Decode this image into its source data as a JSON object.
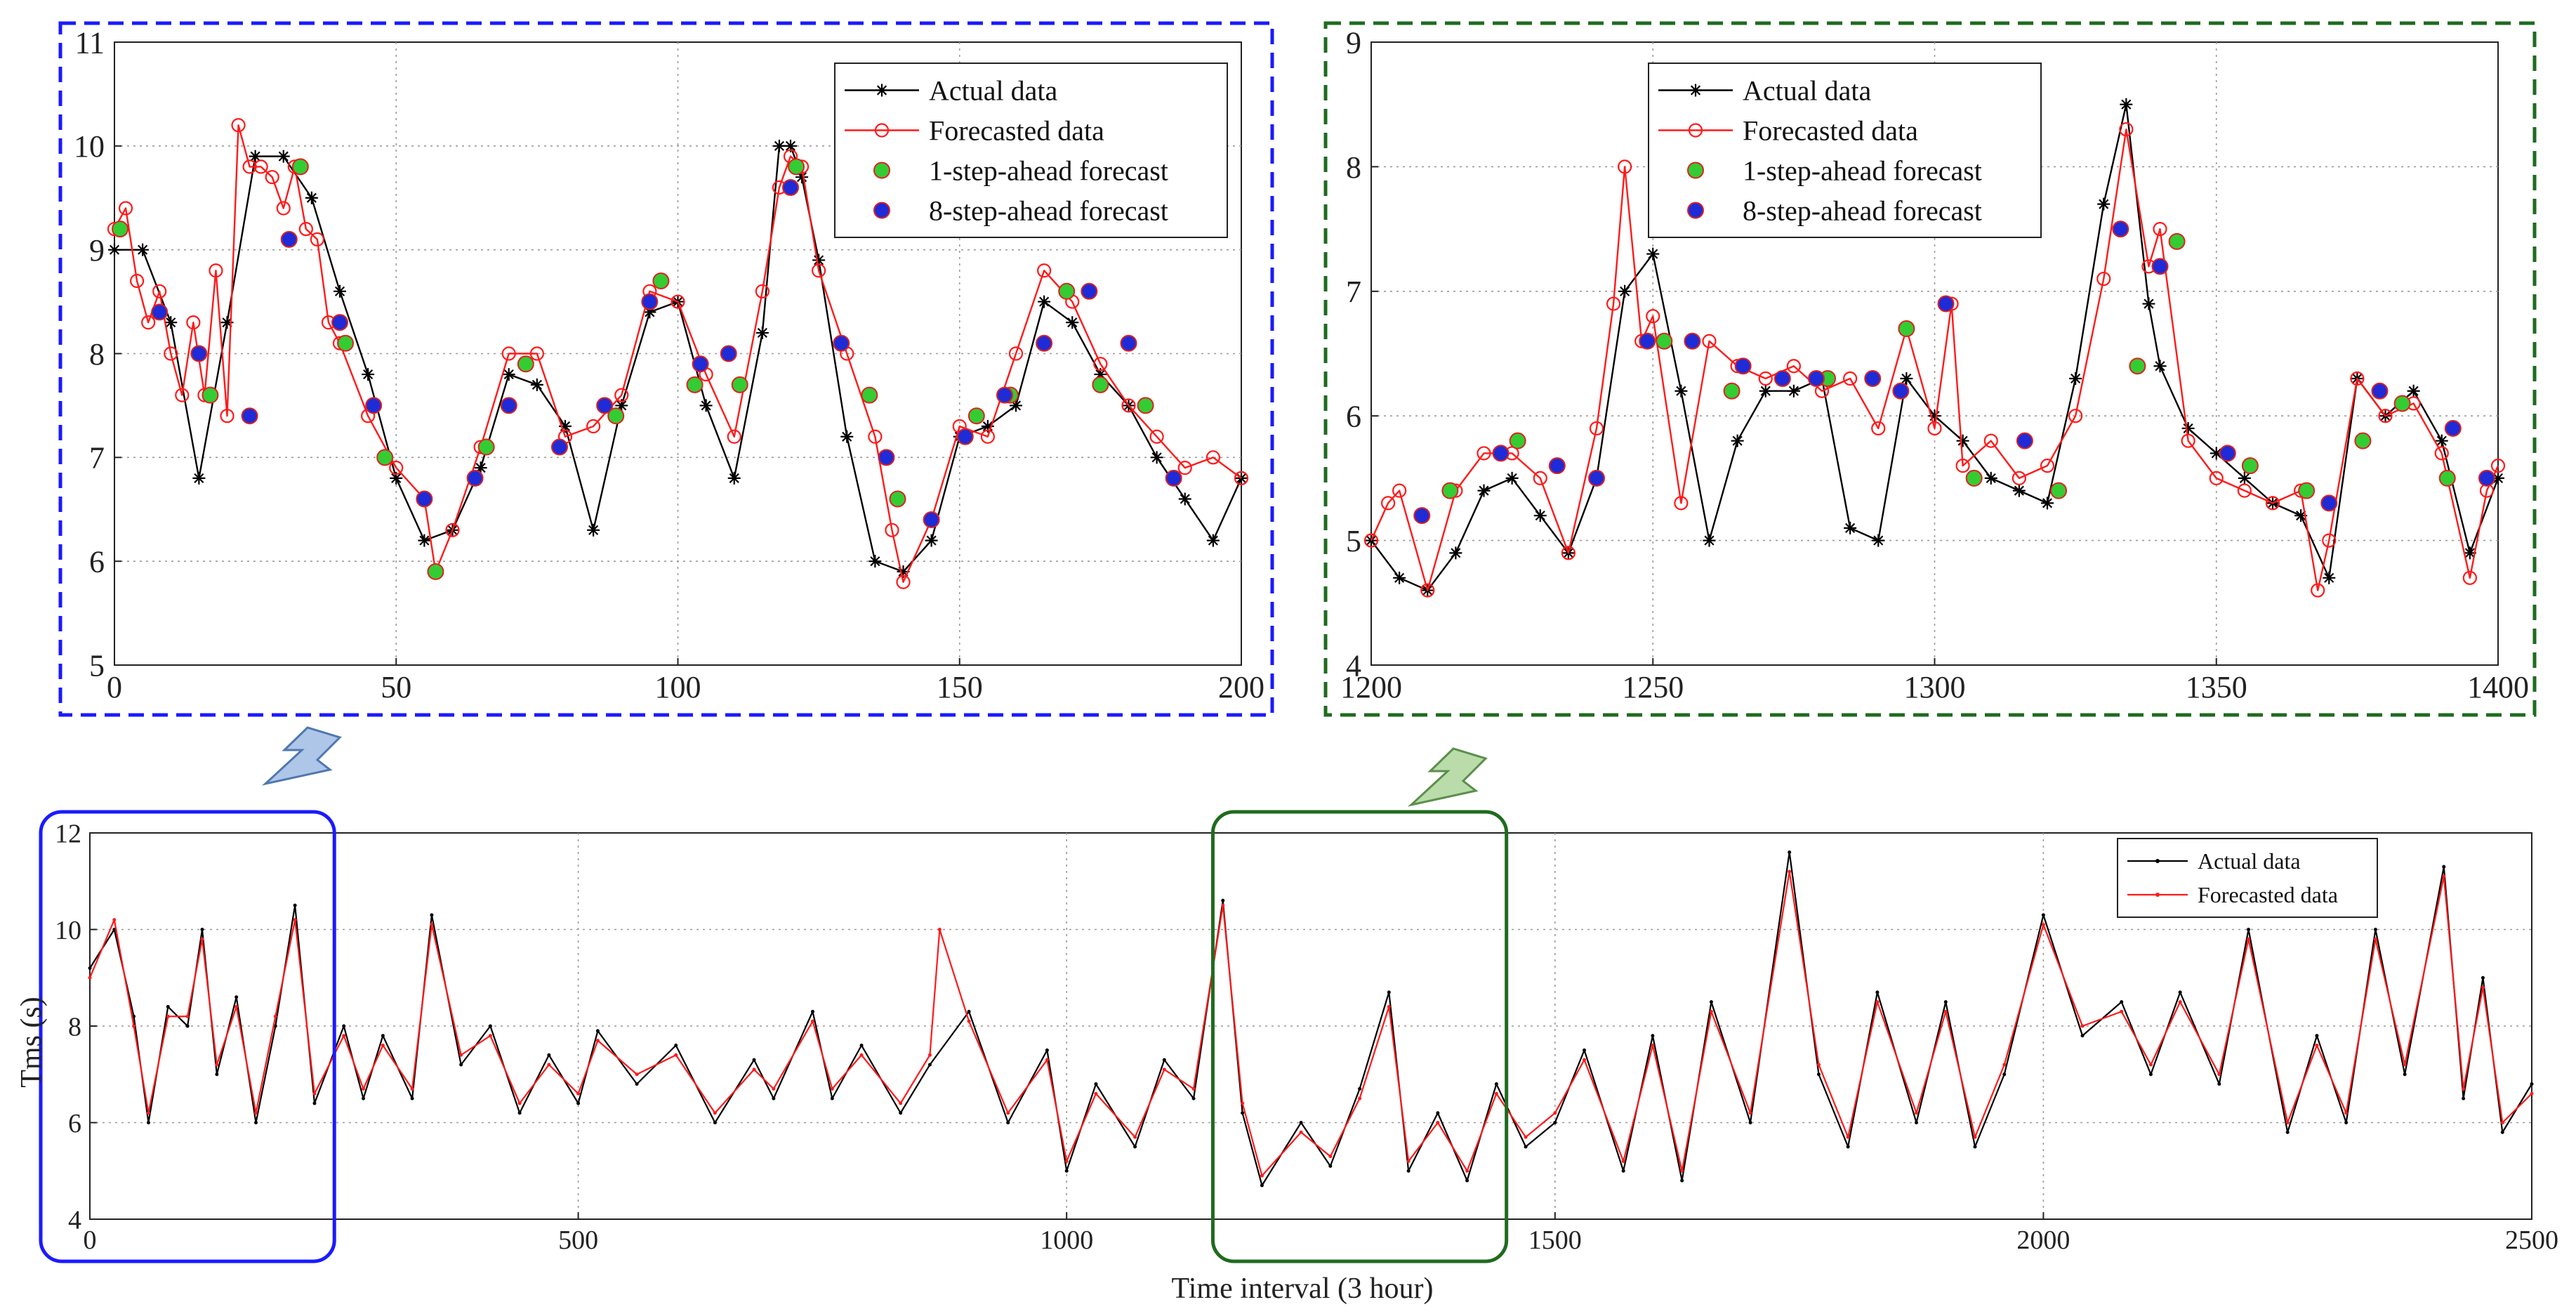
{
  "colors": {
    "actual": "#000000",
    "forecast": "#ff1a1a",
    "one_step": "#33cc33",
    "eight_step": "#1f2bd6",
    "blue_box": "#1a1aff",
    "green_box": "#1f6b1f",
    "arrow_blue": "#aec6e8",
    "arrow_green": "#b9dcaa",
    "grid": "#9a9a9a"
  },
  "chart_data": [
    {
      "id": "top_left",
      "type": "line",
      "title": "",
      "xlabel": "",
      "ylabel": "",
      "xlim": [
        0,
        200
      ],
      "ylim": [
        5,
        11
      ],
      "xticks": [
        0,
        50,
        100,
        150,
        200
      ],
      "yticks": [
        5,
        6,
        7,
        8,
        9,
        10,
        11
      ],
      "grid": true,
      "legend_position": "top-right",
      "legend": [
        {
          "label": "Actual data",
          "kind": "actual"
        },
        {
          "label": "Forecasted data",
          "kind": "forecast"
        },
        {
          "label": "1-step-ahead forecast",
          "kind": "one_step"
        },
        {
          "label": "8-step-ahead forecast",
          "kind": "eight_step"
        }
      ],
      "series": [
        {
          "name": "Actual data",
          "kind": "actual",
          "x": [
            0,
            5,
            10,
            15,
            20,
            25,
            30,
            35,
            40,
            45,
            50,
            55,
            60,
            65,
            70,
            75,
            80,
            85,
            90,
            95,
            100,
            105,
            110,
            115,
            118,
            120,
            122,
            125,
            130,
            135,
            140,
            145,
            150,
            155,
            160,
            165,
            170,
            175,
            180,
            185,
            190,
            195,
            200
          ],
          "y": [
            9.0,
            9.0,
            8.3,
            6.8,
            8.3,
            9.9,
            9.9,
            9.5,
            8.6,
            7.8,
            6.8,
            6.2,
            6.3,
            6.9,
            7.8,
            7.7,
            7.3,
            6.3,
            7.5,
            8.4,
            8.5,
            7.5,
            6.8,
            8.2,
            10.0,
            10.0,
            9.7,
            8.9,
            7.2,
            6.0,
            5.9,
            6.2,
            7.2,
            7.3,
            7.5,
            8.5,
            8.3,
            7.8,
            7.5,
            7.0,
            6.6,
            6.2,
            6.8
          ]
        },
        {
          "name": "Forecasted data",
          "kind": "forecast",
          "x": [
            0,
            2,
            4,
            6,
            8,
            10,
            12,
            14,
            16,
            18,
            20,
            22,
            24,
            26,
            28,
            30,
            32,
            34,
            36,
            38,
            40,
            45,
            50,
            55,
            57,
            60,
            65,
            70,
            75,
            80,
            85,
            90,
            95,
            100,
            105,
            110,
            115,
            118,
            120,
            122,
            125,
            130,
            135,
            138,
            140,
            145,
            150,
            155,
            160,
            165,
            170,
            175,
            180,
            185,
            190,
            195,
            200
          ],
          "y": [
            9.2,
            9.4,
            8.7,
            8.3,
            8.6,
            8.0,
            7.6,
            8.3,
            7.6,
            8.8,
            7.4,
            10.2,
            9.8,
            9.8,
            9.7,
            9.4,
            9.8,
            9.2,
            9.1,
            8.3,
            8.1,
            7.4,
            6.9,
            6.6,
            5.9,
            6.3,
            7.1,
            8.0,
            8.0,
            7.2,
            7.3,
            7.6,
            8.6,
            8.5,
            7.8,
            7.2,
            8.6,
            9.6,
            9.9,
            9.8,
            8.8,
            8.0,
            7.2,
            6.3,
            5.8,
            6.4,
            7.3,
            7.2,
            8.0,
            8.8,
            8.5,
            7.9,
            7.5,
            7.2,
            6.9,
            7.0,
            6.8
          ]
        },
        {
          "name": "1-step-ahead forecast",
          "kind": "one_step",
          "x": [
            1,
            17,
            33,
            41,
            48,
            57,
            66,
            73,
            89,
            97,
            103,
            111,
            121,
            134,
            139,
            153,
            159,
            169,
            175,
            183
          ],
          "y": [
            9.2,
            7.6,
            9.8,
            8.1,
            7.0,
            5.9,
            7.1,
            7.9,
            7.4,
            8.7,
            7.7,
            7.7,
            9.8,
            7.6,
            6.6,
            7.4,
            7.6,
            8.6,
            7.7,
            7.5
          ]
        },
        {
          "name": "8-step-ahead forecast",
          "kind": "eight_step",
          "x": [
            8,
            15,
            24,
            31,
            40,
            46,
            55,
            64,
            70,
            79,
            87,
            95,
            104,
            109,
            120,
            129,
            137,
            145,
            151,
            158,
            165,
            173,
            180,
            188
          ],
          "y": [
            8.4,
            8.0,
            7.4,
            9.1,
            8.3,
            7.5,
            6.6,
            6.8,
            7.5,
            7.1,
            7.5,
            8.5,
            7.9,
            8.0,
            9.6,
            8.1,
            7.0,
            6.4,
            7.2,
            7.6,
            8.1,
            8.6,
            8.1,
            6.8
          ]
        }
      ]
    },
    {
      "id": "top_right",
      "type": "line",
      "title": "",
      "xlabel": "",
      "ylabel": "",
      "xlim": [
        1200,
        1400
      ],
      "ylim": [
        4,
        9
      ],
      "xticks": [
        1200,
        1250,
        1300,
        1350,
        1400
      ],
      "yticks": [
        4,
        5,
        6,
        7,
        8,
        9
      ],
      "grid": true,
      "legend_position": "top-center",
      "legend": [
        {
          "label": "Actual data",
          "kind": "actual"
        },
        {
          "label": "Forecasted data",
          "kind": "forecast"
        },
        {
          "label": "1-step-ahead forecast",
          "kind": "one_step"
        },
        {
          "label": "8-step-ahead forecast",
          "kind": "eight_step"
        }
      ],
      "series": [
        {
          "name": "Actual data",
          "kind": "actual",
          "x": [
            1200,
            1205,
            1210,
            1215,
            1220,
            1225,
            1230,
            1235,
            1240,
            1245,
            1250,
            1255,
            1260,
            1265,
            1270,
            1275,
            1280,
            1285,
            1290,
            1295,
            1300,
            1305,
            1310,
            1315,
            1320,
            1325,
            1330,
            1334,
            1338,
            1340,
            1345,
            1350,
            1355,
            1360,
            1365,
            1370,
            1375,
            1380,
            1385,
            1390,
            1395,
            1400
          ],
          "y": [
            5.0,
            4.7,
            4.6,
            4.9,
            5.4,
            5.5,
            5.2,
            4.9,
            5.5,
            7.0,
            7.3,
            6.2,
            5.0,
            5.8,
            6.2,
            6.2,
            6.3,
            5.1,
            5.0,
            6.3,
            6.0,
            5.8,
            5.5,
            5.4,
            5.3,
            6.3,
            7.7,
            8.5,
            6.9,
            6.4,
            5.9,
            5.7,
            5.5,
            5.3,
            5.2,
            4.7,
            6.3,
            6.0,
            6.2,
            5.8,
            4.9,
            5.5
          ]
        },
        {
          "name": "Forecasted data",
          "kind": "forecast",
          "x": [
            1200,
            1203,
            1205,
            1210,
            1215,
            1220,
            1225,
            1230,
            1235,
            1240,
            1243,
            1245,
            1248,
            1250,
            1255,
            1260,
            1265,
            1270,
            1275,
            1280,
            1285,
            1290,
            1295,
            1300,
            1303,
            1305,
            1310,
            1315,
            1320,
            1325,
            1330,
            1334,
            1338,
            1340,
            1345,
            1350,
            1355,
            1360,
            1365,
            1368,
            1370,
            1375,
            1380,
            1385,
            1390,
            1395,
            1398,
            1400
          ],
          "y": [
            5.0,
            5.3,
            5.4,
            4.6,
            5.4,
            5.7,
            5.7,
            5.5,
            4.9,
            5.9,
            6.9,
            8.0,
            6.6,
            6.8,
            5.3,
            6.6,
            6.4,
            6.3,
            6.4,
            6.2,
            6.3,
            5.9,
            6.7,
            5.9,
            6.9,
            5.6,
            5.8,
            5.5,
            5.6,
            6.0,
            7.1,
            8.3,
            7.2,
            7.5,
            5.8,
            5.5,
            5.4,
            5.3,
            5.4,
            4.6,
            5.0,
            6.3,
            6.0,
            6.1,
            5.7,
            4.7,
            5.4,
            5.6
          ]
        },
        {
          "name": "1-step-ahead forecast",
          "kind": "one_step",
          "x": [
            1214,
            1226,
            1252,
            1264,
            1281,
            1295,
            1307,
            1322,
            1336,
            1343,
            1356,
            1366,
            1376,
            1383,
            1391
          ],
          "y": [
            5.4,
            5.8,
            6.6,
            6.2,
            6.3,
            6.7,
            5.5,
            5.4,
            6.4,
            7.4,
            5.6,
            5.4,
            5.8,
            6.1,
            5.5
          ]
        },
        {
          "name": "8-step-ahead forecast",
          "kind": "eight_step",
          "x": [
            1209,
            1223,
            1233,
            1240,
            1249,
            1257,
            1266,
            1273,
            1279,
            1289,
            1294,
            1302,
            1316,
            1333,
            1340,
            1352,
            1370,
            1379,
            1392,
            1398
          ],
          "y": [
            5.2,
            5.7,
            5.6,
            5.5,
            6.6,
            6.6,
            6.4,
            6.3,
            6.3,
            6.3,
            6.2,
            6.9,
            5.8,
            7.5,
            7.2,
            5.7,
            5.3,
            6.2,
            5.9,
            5.5
          ]
        }
      ]
    },
    {
      "id": "bottom",
      "type": "line",
      "title": "",
      "xlabel": "Time interval (3 hour)",
      "ylabel": "Tms (s)",
      "xlim": [
        0,
        2500
      ],
      "ylim": [
        4,
        12
      ],
      "xticks": [
        0,
        500,
        1000,
        1500,
        2000,
        2500
      ],
      "yticks": [
        4,
        6,
        8,
        10,
        12
      ],
      "grid": true,
      "legend_position": "top-right",
      "legend": [
        {
          "label": "Actual data",
          "kind": "actual"
        },
        {
          "label": "Forecasted data",
          "kind": "forecast"
        }
      ],
      "series": [
        {
          "name": "Actual data",
          "kind": "actual",
          "x": [
            0,
            25,
            45,
            60,
            80,
            100,
            115,
            130,
            150,
            170,
            190,
            210,
            230,
            260,
            280,
            300,
            330,
            350,
            380,
            410,
            440,
            470,
            500,
            520,
            560,
            600,
            640,
            680,
            700,
            740,
            760,
            790,
            830,
            860,
            900,
            940,
            980,
            1000,
            1030,
            1070,
            1100,
            1130,
            1160,
            1180,
            1200,
            1240,
            1270,
            1300,
            1330,
            1350,
            1380,
            1410,
            1440,
            1470,
            1500,
            1530,
            1570,
            1600,
            1630,
            1660,
            1700,
            1740,
            1770,
            1800,
            1830,
            1870,
            1900,
            1930,
            1960,
            2000,
            2040,
            2080,
            2110,
            2140,
            2180,
            2210,
            2250,
            2280,
            2310,
            2340,
            2370,
            2410,
            2430,
            2450,
            2470,
            2500
          ],
          "y": [
            9.2,
            10.0,
            8.2,
            6.0,
            8.4,
            8.0,
            10.0,
            7.0,
            8.6,
            6.0,
            8.0,
            10.5,
            6.4,
            8.0,
            6.5,
            7.8,
            6.5,
            10.3,
            7.2,
            8.0,
            6.2,
            7.4,
            6.4,
            7.9,
            6.8,
            7.6,
            6.0,
            7.3,
            6.5,
            8.3,
            6.5,
            7.6,
            6.2,
            7.2,
            8.3,
            6.0,
            7.5,
            5.0,
            6.8,
            5.5,
            7.3,
            6.5,
            10.6,
            6.2,
            4.7,
            6.0,
            5.1,
            6.7,
            8.7,
            5.0,
            6.2,
            4.8,
            6.8,
            5.5,
            6.0,
            7.5,
            5.0,
            7.8,
            4.8,
            8.5,
            6.0,
            11.6,
            7.0,
            5.5,
            8.7,
            6.0,
            8.5,
            5.5,
            7.0,
            10.3,
            7.8,
            8.5,
            7.0,
            8.7,
            6.8,
            10.0,
            5.8,
            7.8,
            6.0,
            10.0,
            7.0,
            11.3,
            6.5,
            9.0,
            5.8,
            6.8
          ]
        },
        {
          "name": "Forecasted data",
          "kind": "forecast",
          "x": [
            0,
            25,
            45,
            60,
            80,
            100,
            115,
            130,
            150,
            170,
            190,
            210,
            230,
            260,
            280,
            300,
            330,
            350,
            380,
            410,
            440,
            470,
            500,
            520,
            560,
            600,
            640,
            680,
            700,
            740,
            760,
            790,
            830,
            860,
            870,
            900,
            940,
            980,
            1000,
            1030,
            1070,
            1100,
            1130,
            1160,
            1180,
            1200,
            1240,
            1270,
            1300,
            1330,
            1350,
            1380,
            1410,
            1440,
            1470,
            1500,
            1530,
            1570,
            1600,
            1630,
            1660,
            1700,
            1740,
            1770,
            1800,
            1830,
            1870,
            1900,
            1930,
            1960,
            2000,
            2040,
            2080,
            2110,
            2140,
            2180,
            2210,
            2250,
            2280,
            2310,
            2340,
            2370,
            2410,
            2430,
            2450,
            2470,
            2500
          ],
          "y": [
            9.0,
            10.2,
            8.0,
            6.2,
            8.2,
            8.2,
            9.8,
            7.2,
            8.4,
            6.2,
            8.2,
            10.2,
            6.6,
            7.8,
            6.7,
            7.6,
            6.7,
            10.1,
            7.4,
            7.8,
            6.4,
            7.2,
            6.6,
            7.7,
            7.0,
            7.4,
            6.2,
            7.1,
            6.7,
            8.1,
            6.7,
            7.4,
            6.4,
            7.4,
            10.0,
            8.1,
            6.2,
            7.3,
            5.2,
            6.6,
            5.7,
            7.1,
            6.7,
            10.5,
            6.4,
            4.9,
            5.8,
            5.3,
            6.5,
            8.4,
            5.2,
            6.0,
            5.0,
            6.6,
            5.7,
            6.2,
            7.3,
            5.2,
            7.6,
            5.0,
            8.3,
            6.2,
            11.2,
            7.2,
            5.7,
            8.5,
            6.2,
            8.3,
            5.7,
            7.2,
            10.1,
            8.0,
            8.3,
            7.2,
            8.5,
            7.0,
            9.8,
            6.0,
            7.6,
            6.2,
            9.8,
            7.2,
            11.1,
            6.7,
            8.8,
            6.0,
            6.6
          ]
        }
      ],
      "highlight_boxes": [
        {
          "color": "blue_box",
          "x_from": 0,
          "x_to": 200
        },
        {
          "color": "green_box",
          "x_from": 1200,
          "x_to": 1400
        }
      ]
    }
  ]
}
